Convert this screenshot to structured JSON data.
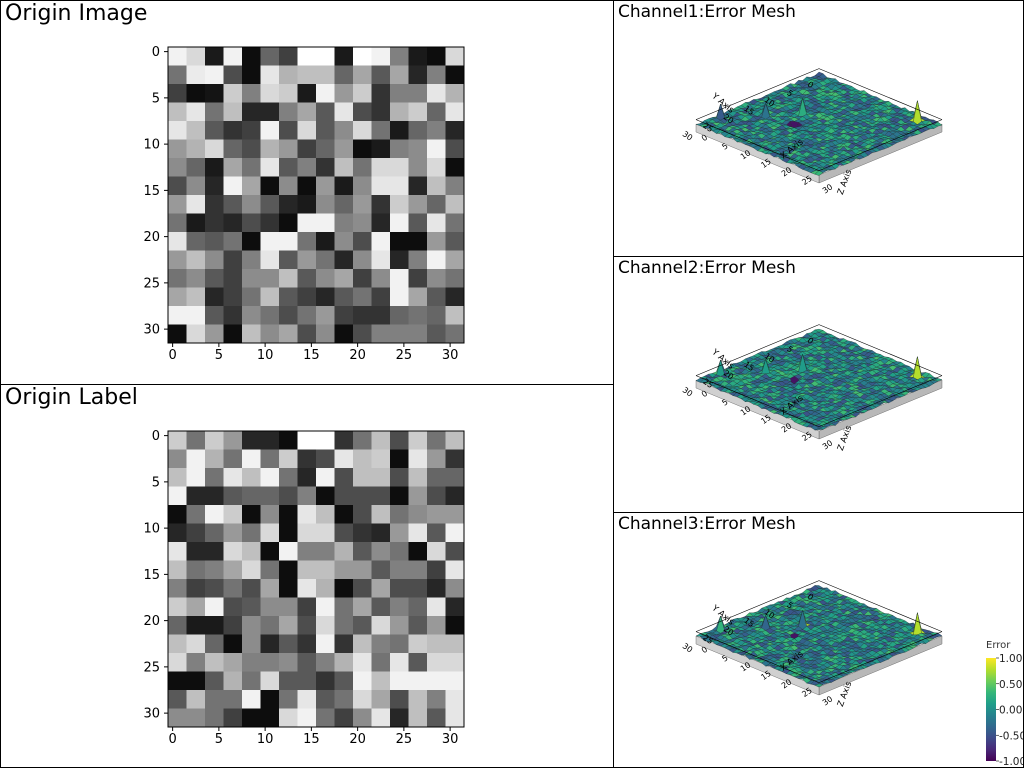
{
  "panels": {
    "origin_image": {
      "title": "Origin Image"
    },
    "origin_label": {
      "title": "Origin Label"
    },
    "channel1": {
      "title": "Channel1:Error Mesh"
    },
    "channel2": {
      "title": "Channel2:Error Mesh"
    },
    "channel3": {
      "title": "Channel3:Error Mesh"
    }
  },
  "colorbar": {
    "title": "Error",
    "ticks": [
      "1.00",
      "0.50",
      "0.00",
      "-0.50",
      "-1.00"
    ],
    "range": [
      -1,
      1
    ],
    "colormap": "viridis"
  },
  "chart_data": [
    {
      "type": "heatmap",
      "name": "origin_image",
      "title": "Origin Image",
      "colormap": "gray",
      "grid_size": 32,
      "cell_block": 2,
      "xlim": [
        0,
        31
      ],
      "ylim": [
        31,
        0
      ],
      "xticks": [
        0,
        5,
        10,
        15,
        20,
        25,
        30
      ],
      "yticks": [
        0,
        5,
        10,
        15,
        20,
        25,
        30
      ],
      "values": [
        [
          0.95,
          0.85,
          0.1,
          0.95,
          0.05,
          0.4,
          0.25,
          1,
          1,
          0.1,
          1,
          0.95,
          0.5,
          0.1,
          0.05,
          0.85
        ],
        [
          0.45,
          0.92,
          0.95,
          0.3,
          0.05,
          0.9,
          0.7,
          0.75,
          0.75,
          0.4,
          0.65,
          0.35,
          0.65,
          0.15,
          0.5,
          0.05
        ],
        [
          0.25,
          0.05,
          0.08,
          0.8,
          0.5,
          0.85,
          0.8,
          0.1,
          0.95,
          0.6,
          0.8,
          0.2,
          0.5,
          0.5,
          0.9,
          0.7
        ],
        [
          0.75,
          0.9,
          0.45,
          0.75,
          0.15,
          0.15,
          0.5,
          0.65,
          0.35,
          0.9,
          0.3,
          0.2,
          0.7,
          0.8,
          0.4,
          0.9
        ],
        [
          0.9,
          0.75,
          0.35,
          0.2,
          0.25,
          0.95,
          0.3,
          0.85,
          0.35,
          0.55,
          0.85,
          0.45,
          0.1,
          0.4,
          0.5,
          0.15
        ],
        [
          0.6,
          0.7,
          0.85,
          0.4,
          0.3,
          0.7,
          0.6,
          0.25,
          0.4,
          0.6,
          0.05,
          0.1,
          0.5,
          0.55,
          0.95,
          0.3
        ],
        [
          0.55,
          0.4,
          0.1,
          0.65,
          0.45,
          0.9,
          0.35,
          0.5,
          0.2,
          0.75,
          0.45,
          0.85,
          0.85,
          0.55,
          0.85,
          0.05
        ],
        [
          0.3,
          0.55,
          0.15,
          0.95,
          0.65,
          0.05,
          0.55,
          0.05,
          0.6,
          0.1,
          0.55,
          0.9,
          0.9,
          0.15,
          0.75,
          0.5
        ],
        [
          0.6,
          0.9,
          0.2,
          0.35,
          0.55,
          0.35,
          0.15,
          0.1,
          0.55,
          0.4,
          0.6,
          0.2,
          0.8,
          0.6,
          0.4,
          0.75
        ],
        [
          0.45,
          0.1,
          0.2,
          0.15,
          0.3,
          0.2,
          0.05,
          0.95,
          0.95,
          0.5,
          0.55,
          0.15,
          0.95,
          0.35,
          0.9,
          0.45
        ],
        [
          0.9,
          0.4,
          0.35,
          0.45,
          0.05,
          0.95,
          0.95,
          0.45,
          0.1,
          0.55,
          0.3,
          0.95,
          0.05,
          0.05,
          0.6,
          0.35
        ],
        [
          0.6,
          0.75,
          0.55,
          0.25,
          0.5,
          0.9,
          0.35,
          0.6,
          0.45,
          0.15,
          0.55,
          0.9,
          0.15,
          0.5,
          0.95,
          0.65
        ],
        [
          0.45,
          0.55,
          0.35,
          0.25,
          0.55,
          0.55,
          0.75,
          0.35,
          0.55,
          0.65,
          0.25,
          0.55,
          0.95,
          0.25,
          0.55,
          0.45
        ],
        [
          0.65,
          0.75,
          0.15,
          0.25,
          0.45,
          0.75,
          0.35,
          0.25,
          0.15,
          0.35,
          0.45,
          0.25,
          0.95,
          0.65,
          0.35,
          0.15
        ],
        [
          0.95,
          0.95,
          0.35,
          0.2,
          0.55,
          0.45,
          0.3,
          0.45,
          0.6,
          0.25,
          0.2,
          0.2,
          0.4,
          0.45,
          0.4,
          0.75
        ],
        [
          0.05,
          0.85,
          0.6,
          0.05,
          0.75,
          0.55,
          0.65,
          0.3,
          0.55,
          0.05,
          0.3,
          0.5,
          0.5,
          0.5,
          0.35,
          0.45
        ]
      ]
    },
    {
      "type": "heatmap",
      "name": "origin_label",
      "title": "Origin Label",
      "colormap": "gray",
      "grid_size": 32,
      "cell_block": 2,
      "xlim": [
        0,
        31
      ],
      "ylim": [
        31,
        0
      ],
      "xticks": [
        0,
        5,
        10,
        15,
        20,
        25,
        30
      ],
      "yticks": [
        0,
        5,
        10,
        15,
        20,
        25,
        30
      ],
      "values": [
        [
          0.8,
          0.45,
          0.8,
          0.6,
          0.15,
          0.15,
          0.05,
          1,
          1,
          0.2,
          0.45,
          0.75,
          0.3,
          0.8,
          0.45,
          0.75
        ],
        [
          0.55,
          0.95,
          0.7,
          0.45,
          0.95,
          0.45,
          0.8,
          0.2,
          0.3,
          0.9,
          0.75,
          0.8,
          0.05,
          0.9,
          0.6,
          0.2
        ],
        [
          0.75,
          0.95,
          0.45,
          0.9,
          0.75,
          0.95,
          0.45,
          0.15,
          0.95,
          0.3,
          0.75,
          0.75,
          0.3,
          0.75,
          0.4,
          0.4
        ],
        [
          0.95,
          0.15,
          0.15,
          0.35,
          0.4,
          0.4,
          0.3,
          0.5,
          0.05,
          0.3,
          0.3,
          0.3,
          0.05,
          0.6,
          0.3,
          0.15
        ],
        [
          0.05,
          0.45,
          0.95,
          0.8,
          0.05,
          0.55,
          0.05,
          0.9,
          0.75,
          0.05,
          0.3,
          0.75,
          0.45,
          0.55,
          0.6,
          0.6
        ],
        [
          0.15,
          0.25,
          0.4,
          0.6,
          0.45,
          0.85,
          0.05,
          0.85,
          0.85,
          0.3,
          0.2,
          0.15,
          0.6,
          0.9,
          0.35,
          0.95
        ],
        [
          0.9,
          0.15,
          0.15,
          0.85,
          0.75,
          0.05,
          0.95,
          0.5,
          0.5,
          0.7,
          0.35,
          0.55,
          0.45,
          0.05,
          0.85,
          0.3
        ],
        [
          0.75,
          0.45,
          0.5,
          0.65,
          0.85,
          0.45,
          0.05,
          0.75,
          0.75,
          0.6,
          0.6,
          0.35,
          0.5,
          0.5,
          0.25,
          0.9
        ],
        [
          0.5,
          0.25,
          0.3,
          0.45,
          0.3,
          0.65,
          0.05,
          0.9,
          0.7,
          0.05,
          0.3,
          0.65,
          0.3,
          0.3,
          0.15,
          0.55
        ],
        [
          0.8,
          0.65,
          0.95,
          0.3,
          0.35,
          0.55,
          0.55,
          0.25,
          0.95,
          0.45,
          0.65,
          0.35,
          0.5,
          0.4,
          0.9,
          0.15
        ],
        [
          0.4,
          0.1,
          0.1,
          0.25,
          0.55,
          0.45,
          0.65,
          0.3,
          0.85,
          0.45,
          0.35,
          0.85,
          0.6,
          0.35,
          0.6,
          0.05
        ],
        [
          0.75,
          0.85,
          0.4,
          0.05,
          0.55,
          0.15,
          0.35,
          0.2,
          0.95,
          0.2,
          0.75,
          0.5,
          0.45,
          0.8,
          0.75,
          0.75
        ],
        [
          0.85,
          0.5,
          0.75,
          0.65,
          0.5,
          0.5,
          0.55,
          0.35,
          0.5,
          0.7,
          0.9,
          0.45,
          0.9,
          0.35,
          0.85,
          0.85
        ],
        [
          0.05,
          0.05,
          0.35,
          0.7,
          0.45,
          0.85,
          0.35,
          0.35,
          0.2,
          0.35,
          0.95,
          0.75,
          0.95,
          0.95,
          0.95,
          0.95
        ],
        [
          0.35,
          0.75,
          0.45,
          0.45,
          0.95,
          0.05,
          0.45,
          0.9,
          0.35,
          0.45,
          0.85,
          0.65,
          0.3,
          0.75,
          0.5,
          0.9
        ],
        [
          0.55,
          0.55,
          0.45,
          0.25,
          0.05,
          0.05,
          0.85,
          0.95,
          0.45,
          0.25,
          0.55,
          0.9,
          0.15,
          0.75,
          0.35,
          0.9
        ]
      ]
    },
    {
      "type": "surface3d",
      "name": "channel1",
      "title": "Channel1:Error Mesh",
      "colormap": "viridis",
      "grid_size": 31,
      "x_label": "X Axis",
      "y_label": "Y Axis",
      "z_label": "Z Axis",
      "x_ticks": [
        0,
        5,
        10,
        15,
        20,
        25,
        30
      ],
      "y_ticks": [
        0,
        5,
        10,
        15,
        20,
        25,
        30
      ],
      "zlim": [
        -1,
        1
      ],
      "peaks": [
        {
          "x": 26,
          "y": 2,
          "z": 0.9
        },
        {
          "x": 10,
          "y": 14,
          "z": 0.7
        },
        {
          "x": 6,
          "y": 19,
          "z": 0.55
        },
        {
          "x": 12,
          "y": 18,
          "z": -0.8
        },
        {
          "x": 1,
          "y": 25,
          "z": 0.6
        }
      ]
    },
    {
      "type": "surface3d",
      "name": "channel2",
      "title": "Channel2:Error Mesh",
      "colormap": "viridis",
      "grid_size": 31,
      "x_label": "X Axis",
      "y_label": "Y Axis",
      "z_label": "Z Axis",
      "x_ticks": [
        0,
        5,
        10,
        15,
        20,
        25,
        30
      ],
      "y_ticks": [
        0,
        5,
        10,
        15,
        20,
        25,
        30
      ],
      "zlim": [
        -1,
        1
      ],
      "peaks": [
        {
          "x": 26,
          "y": 2,
          "z": 0.9
        },
        {
          "x": 10,
          "y": 14,
          "z": 0.7
        },
        {
          "x": 6,
          "y": 19,
          "z": 0.55
        },
        {
          "x": 12,
          "y": 18,
          "z": -0.8
        },
        {
          "x": 1,
          "y": 25,
          "z": 0.6
        }
      ]
    },
    {
      "type": "surface3d",
      "name": "channel3",
      "title": "Channel3:Error Mesh",
      "colormap": "viridis",
      "grid_size": 31,
      "x_label": "X Axis",
      "y_label": "Y Axis",
      "z_label": "Z Axis",
      "x_ticks": [
        0,
        5,
        10,
        15,
        20,
        25,
        30
      ],
      "y_ticks": [
        0,
        5,
        10,
        15,
        20,
        25,
        30
      ],
      "zlim": [
        -1,
        1
      ],
      "peaks": [
        {
          "x": 26,
          "y": 2,
          "z": 0.9
        },
        {
          "x": 10,
          "y": 14,
          "z": 0.7
        },
        {
          "x": 6,
          "y": 19,
          "z": 0.55
        },
        {
          "x": 12,
          "y": 18,
          "z": -0.8
        },
        {
          "x": 1,
          "y": 25,
          "z": 0.6
        }
      ]
    }
  ]
}
